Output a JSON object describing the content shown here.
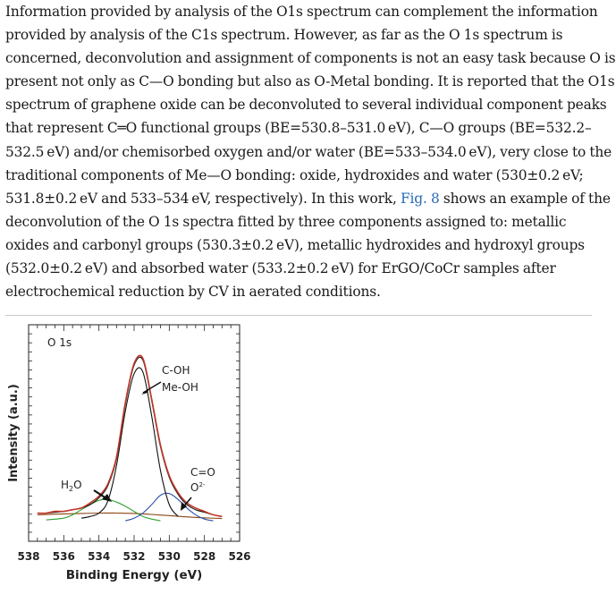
{
  "paragraph": {
    "lines": [
      "Information provided by analysis of the O1s spectrum can complement the information",
      "provided by analysis of the C1s spectrum. However, as far as the O 1s spectrum is",
      "concerned, deconvolution and assignment of components is not an easy task because O is",
      "present not only as C—O bonding but also as O-Metal bonding. It is reported that the O1s",
      "spectrum of graphene oxide can be deconvoluted to several individual component peaks",
      "that represent C═O functional groups (BE=530.8–531.0 eV), C—O groups (BE=532.2–",
      "532.5 eV) and/or chemisorbed oxygen and/or water (BE=533–534.0 eV), very close to the",
      "traditional components of Me—O bonding: oxide, hydroxides and water (530±0.2 eV;",
      "531.8±0.2 eV and 533–534 eV, respectively). In this work, ",
      "deconvolution of the O 1s spectra fitted by three components assigned to: metallic",
      "oxides and carbonyl groups (530.3±0.2 eV), metallic hydroxides and hydroxyl groups",
      "(532.0±0.2 eV) and absorbed water (533.2±0.2 eV) for ErGO/CoCr samples after",
      "electrochemical reduction by CV in aerated conditions."
    ],
    "fig_ref": "Fig. 8",
    "line9_tail": " shows an example of the"
  },
  "chart_data": {
    "type": "line",
    "panel_label": "O 1s",
    "xlabel": "Binding Energy (eV)",
    "ylabel": "Intensity (a.u.)",
    "xlim": [
      538,
      526
    ],
    "x_reversed": true,
    "xticks": [
      538,
      536,
      534,
      532,
      530,
      528,
      526
    ],
    "ylim": [
      0,
      1
    ],
    "y_tick_labels": false,
    "annotations": {
      "peak1_line1": "C-OH",
      "peak1_line2": "Me-OH",
      "water": "H",
      "water_sub": "2",
      "water_tail": "O",
      "carbonyl": "C=O",
      "oxide": "O",
      "oxide_sup": "2-"
    },
    "series": [
      {
        "role": "experimental",
        "color": "#c0392b",
        "x": [
          537.5,
          537,
          536.5,
          536,
          535.5,
          535,
          534.5,
          534,
          533.5,
          533,
          532.5,
          532,
          531.5,
          531,
          530.5,
          530,
          529.5,
          529,
          528.5,
          528,
          527.5,
          527
        ],
        "values": [
          0.05,
          0.05,
          0.06,
          0.06,
          0.07,
          0.08,
          0.11,
          0.15,
          0.22,
          0.38,
          0.7,
          0.93,
          0.96,
          0.72,
          0.45,
          0.27,
          0.17,
          0.11,
          0.08,
          0.06,
          0.04,
          0.03
        ]
      },
      {
        "role": "fit",
        "color": "#111111",
        "x": [
          537.5,
          537,
          536.5,
          536,
          535.5,
          535,
          534.5,
          534,
          533.5,
          533,
          532.5,
          532,
          531.5,
          531,
          530.5,
          530,
          529.5,
          529,
          528.5,
          528,
          527.5,
          527
        ],
        "values": [
          0.05,
          0.05,
          0.055,
          0.06,
          0.07,
          0.08,
          0.1,
          0.14,
          0.21,
          0.37,
          0.69,
          0.92,
          0.95,
          0.71,
          0.44,
          0.26,
          0.16,
          0.1,
          0.07,
          0.055,
          0.04,
          0.03
        ]
      },
      {
        "role": "hydroxide",
        "color": "#111111",
        "x": [
          535,
          534.5,
          534,
          533.5,
          533,
          532.5,
          532,
          531.5,
          531,
          530.5,
          530,
          529.5
        ],
        "values": [
          0.02,
          0.03,
          0.05,
          0.12,
          0.33,
          0.65,
          0.87,
          0.88,
          0.62,
          0.3,
          0.1,
          0.03
        ]
      },
      {
        "role": "water",
        "color": "#2ea02e",
        "x": [
          537,
          536,
          535.5,
          535,
          534.5,
          534,
          533.5,
          533,
          532.5,
          532,
          531.5,
          531,
          530.5
        ],
        "values": [
          0.01,
          0.02,
          0.04,
          0.07,
          0.1,
          0.125,
          0.13,
          0.115,
          0.09,
          0.06,
          0.03,
          0.015,
          0.005
        ]
      },
      {
        "role": "oxide",
        "color": "#2b4fa8",
        "x": [
          532.5,
          532,
          531.5,
          531,
          530.5,
          530,
          529.5,
          529,
          528.5,
          528,
          527.5
        ],
        "values": [
          0.005,
          0.02,
          0.05,
          0.1,
          0.155,
          0.165,
          0.13,
          0.08,
          0.04,
          0.015,
          0.005
        ]
      },
      {
        "role": "background",
        "color": "#8b4513",
        "x": [
          537.5,
          536,
          535,
          534,
          533,
          532,
          531,
          530,
          529,
          528,
          527
        ],
        "values": [
          0.04,
          0.045,
          0.048,
          0.05,
          0.05,
          0.048,
          0.042,
          0.035,
          0.028,
          0.022,
          0.018
        ]
      }
    ],
    "colors": {
      "experimental": "#c0392b",
      "fit": "#111111",
      "water": "#2ea02e",
      "oxide": "#2b4fa8",
      "background": "#8b4513"
    }
  }
}
